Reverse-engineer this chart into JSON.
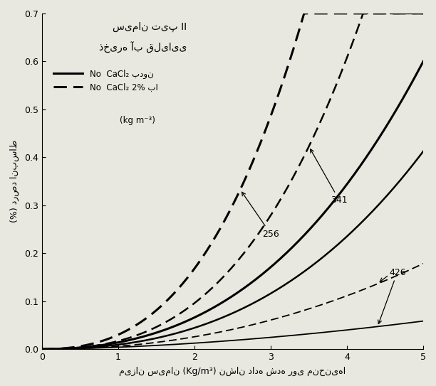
{
  "title_line1": "سیمان تیپ II",
  "title_line2": "ذخیره آب قلیایی",
  "legend_solid": "No  CaCl₂ بدون",
  "legend_dashed": "No  CaCl₂ 2% با",
  "legend_unit": "(kg m⁻³)",
  "xlabel": "میزان سیمان (Kg/m³) نشان داده شده روی منحنی‌ها",
  "ylabel": "(%) درصد انبساط",
  "xlim": [
    0,
    5
  ],
  "ylim": [
    0,
    0.7
  ],
  "yticks": [
    0.0,
    0.1,
    0.2,
    0.3,
    0.4,
    0.5,
    0.6,
    0.7
  ],
  "xticks": [
    0,
    1,
    2,
    3,
    4,
    5
  ],
  "background_color": "#e8e8e0"
}
